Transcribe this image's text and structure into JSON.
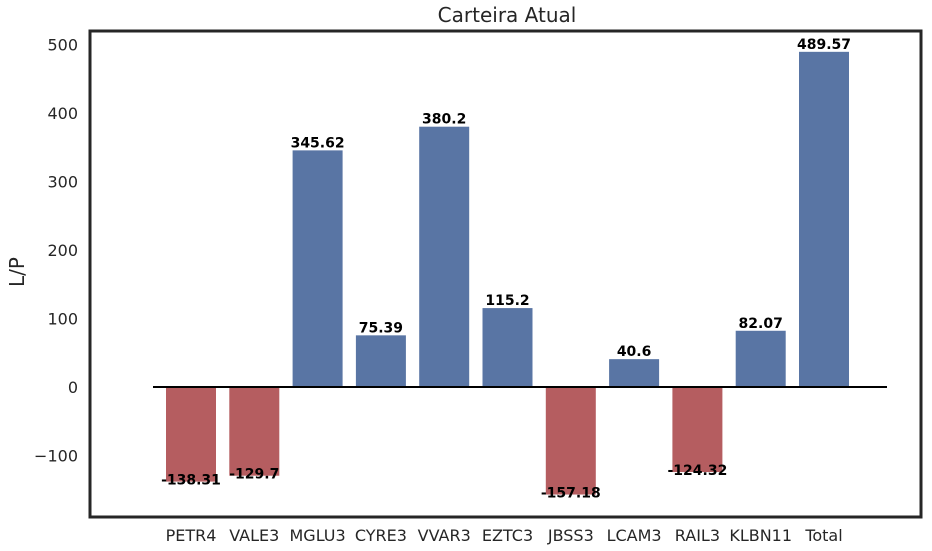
{
  "chart_data": {
    "type": "bar",
    "title": "Carteira Atual",
    "xlabel": "",
    "ylabel": "L/P",
    "categories": [
      "PETR4",
      "VALE3",
      "MGLU3",
      "CYRE3",
      "VVAR3",
      "EZTC3",
      "JBSS3",
      "LCAM3",
      "RAIL3",
      "KLBN11",
      "Total"
    ],
    "values": [
      -138.31,
      -129.7,
      345.62,
      75.39,
      380.2,
      115.2,
      -157.18,
      40.6,
      -124.32,
      82.07,
      489.57
    ],
    "labels": [
      "-138.31",
      "-129.7",
      "345.62",
      "75.39",
      "380.2",
      "115.2",
      "-157.18",
      "40.6",
      "-124.32",
      "82.07",
      "489.57"
    ],
    "show_labels": [
      true,
      true,
      true,
      true,
      true,
      true,
      true,
      true,
      true,
      true,
      true
    ],
    "ylim": [
      -190,
      520
    ],
    "yticks": [
      -100,
      0,
      100,
      200,
      300,
      400,
      500
    ],
    "ytick_labels": [
      "−100",
      "0",
      "100",
      "200",
      "300",
      "400",
      "500"
    ],
    "grid": false,
    "colors": {
      "positive": "#5975a4",
      "negative": "#b55d60",
      "zero_line": "#000000",
      "frame": "#262626"
    }
  }
}
